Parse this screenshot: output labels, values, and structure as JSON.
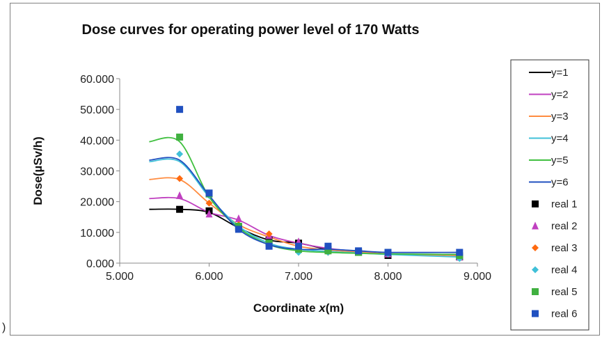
{
  "stray_text": ")",
  "chart_data": {
    "type": "line",
    "title": "Dose curves for operating power level of 170 Watts",
    "xlabel_prefix": "Coordinate ",
    "xlabel_italic": "x",
    "xlabel_suffix": "(m)",
    "ylabel": "Dose(µSv/h)",
    "xlim": [
      5.0,
      9.0
    ],
    "ylim": [
      0.0,
      60.0
    ],
    "x_ticks": [
      "5.000",
      "6.000",
      "7.000",
      "8.000",
      "9.000"
    ],
    "y_ticks": [
      "0.000",
      "10.000",
      "20.000",
      "30.000",
      "40.000",
      "50.000",
      "60.000"
    ],
    "grid": false,
    "legend_position": "right",
    "series": [
      {
        "name": "y=1",
        "kind": "line",
        "color": "#000000",
        "x": [
          5.33,
          5.67,
          6.0,
          6.33,
          6.67,
          7.0,
          7.33,
          7.67,
          8.0,
          8.8
        ],
        "y": [
          17.5,
          17.5,
          16.5,
          11.5,
          7.5,
          6.5,
          4.5,
          3.8,
          3.0,
          2.8
        ]
      },
      {
        "name": "y=2",
        "kind": "line",
        "color": "#c040c0",
        "x": [
          5.33,
          5.67,
          6.0,
          6.33,
          6.67,
          7.0,
          7.33,
          7.67,
          8.0,
          8.8
        ],
        "y": [
          21.0,
          21.0,
          16.5,
          14.0,
          9.0,
          6.5,
          4.8,
          3.8,
          3.0,
          2.5
        ]
      },
      {
        "name": "y=3",
        "kind": "line",
        "color": "#ff8c40",
        "x": [
          5.33,
          5.67,
          6.0,
          6.33,
          6.67,
          7.0,
          7.33,
          7.67,
          8.0,
          8.8
        ],
        "y": [
          27.2,
          27.2,
          19.5,
          12.5,
          8.5,
          5.5,
          4.3,
          3.6,
          3.0,
          2.5
        ]
      },
      {
        "name": "y=4",
        "kind": "line",
        "color": "#40c0d8",
        "x": [
          5.33,
          5.67,
          6.0,
          6.33,
          6.67,
          7.0,
          7.33,
          7.67,
          8.0,
          8.8
        ],
        "y": [
          33.0,
          33.0,
          21.5,
          12.0,
          6.5,
          4.5,
          3.8,
          3.3,
          2.8,
          2.0
        ]
      },
      {
        "name": "y=5",
        "kind": "line",
        "color": "#40c040",
        "x": [
          5.33,
          5.67,
          6.0,
          6.33,
          6.67,
          7.0,
          7.33,
          7.67,
          8.0,
          8.8
        ],
        "y": [
          39.5,
          39.5,
          21.5,
          11.5,
          6.0,
          4.0,
          3.5,
          3.2,
          3.0,
          2.8
        ]
      },
      {
        "name": "y=6",
        "kind": "line",
        "color": "#2050c0",
        "x": [
          5.33,
          5.67,
          6.0,
          6.33,
          6.67,
          7.0,
          7.33,
          7.67,
          8.0,
          8.8
        ],
        "y": [
          33.5,
          33.5,
          22.0,
          11.0,
          6.0,
          4.5,
          4.5,
          4.0,
          3.5,
          3.5
        ]
      },
      {
        "name": "real 1",
        "kind": "marker",
        "marker": "square",
        "color": "#000000",
        "x": [
          5.67,
          6.0,
          6.33,
          6.67,
          7.0,
          7.33,
          7.67,
          8.0,
          8.8
        ],
        "y": [
          17.5,
          17.0,
          11.5,
          7.5,
          6.5,
          4.5,
          3.5,
          2.5,
          2.0
        ]
      },
      {
        "name": "real 2",
        "kind": "marker",
        "marker": "triangle",
        "color": "#c040c0",
        "x": [
          5.67,
          6.0,
          6.33,
          6.67,
          7.0,
          7.33,
          7.67,
          8.0,
          8.8
        ],
        "y": [
          22.0,
          16.0,
          14.5,
          9.0,
          7.0,
          4.5,
          3.5,
          3.0,
          2.0
        ]
      },
      {
        "name": "real 3",
        "kind": "marker",
        "marker": "diamond",
        "color": "#ff6a10",
        "x": [
          5.67,
          6.0,
          6.33,
          6.67,
          7.0,
          7.33,
          7.67,
          8.0,
          8.8
        ],
        "y": [
          27.5,
          19.5,
          12.5,
          9.5,
          5.5,
          3.5,
          3.5,
          3.0,
          2.5
        ]
      },
      {
        "name": "real 4",
        "kind": "marker",
        "marker": "diamond",
        "color": "#40c0d8",
        "x": [
          5.67,
          6.0,
          6.33,
          6.67,
          7.0,
          7.33,
          7.67,
          8.0,
          8.8
        ],
        "y": [
          35.5,
          22.0,
          12.0,
          6.5,
          3.5,
          3.5,
          3.5,
          3.0,
          1.5
        ]
      },
      {
        "name": "real 5",
        "kind": "marker",
        "marker": "square",
        "color": "#40b040",
        "x": [
          5.67,
          6.0,
          6.33,
          6.67,
          7.0,
          7.33,
          7.67,
          8.0,
          8.8
        ],
        "y": [
          41.0,
          22.5,
          12.0,
          6.5,
          4.5,
          4.0,
          3.5,
          3.5,
          2.5
        ]
      },
      {
        "name": "real 6",
        "kind": "marker",
        "marker": "square",
        "color": "#2050c0",
        "x": [
          5.67,
          6.0,
          6.33,
          6.67,
          7.0,
          7.33,
          7.67,
          8.0,
          8.8
        ],
        "y": [
          50.0,
          22.8,
          11.0,
          5.5,
          5.5,
          5.5,
          4.0,
          3.5,
          3.5
        ]
      }
    ]
  }
}
